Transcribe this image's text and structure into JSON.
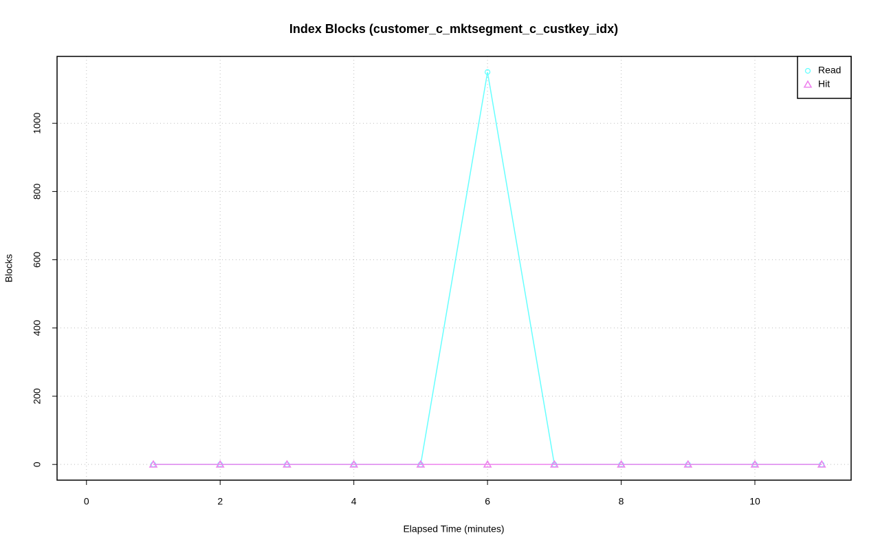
{
  "chart_data": {
    "type": "line",
    "title": "Index Blocks (customer_c_mktsegment_c_custkey_idx)",
    "x_label": "Elapsed Time (minutes)",
    "y_label": "Blocks",
    "x": [
      1,
      2,
      3,
      4,
      5,
      6,
      7,
      8,
      9,
      10,
      11
    ],
    "series": [
      {
        "name": "Read",
        "color": "#66ffff",
        "marker": "circle",
        "values": [
          0,
          0,
          0,
          0,
          0,
          1150,
          0,
          0,
          0,
          0,
          0
        ]
      },
      {
        "name": "Hit",
        "color": "#ee82ee",
        "marker": "triangle",
        "values": [
          0,
          0,
          0,
          0,
          0,
          0,
          0,
          0,
          0,
          0,
          0
        ]
      }
    ],
    "xlim": [
      -0.44,
      11.44
    ],
    "xticks": [
      0,
      2,
      4,
      6,
      8,
      10
    ],
    "ylim": [
      -46,
      1196
    ],
    "yticks": [
      0,
      200,
      400,
      600,
      800,
      1000
    ],
    "grid": true,
    "legend": "top-right"
  }
}
